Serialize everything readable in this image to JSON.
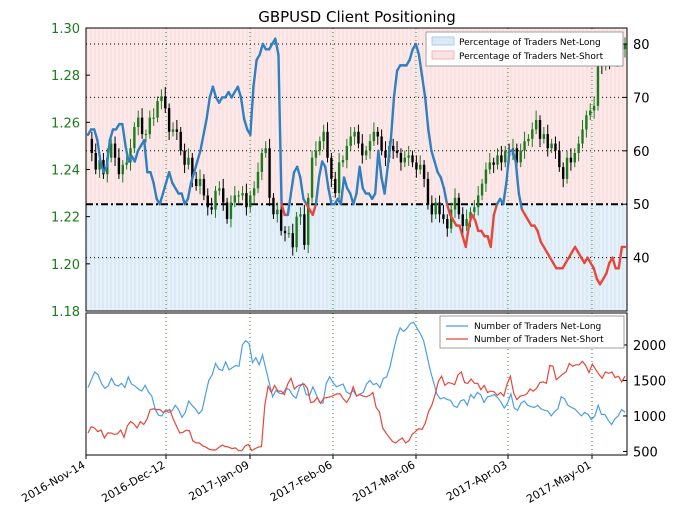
{
  "chart_data": [
    {
      "type": "line",
      "title": "GBPUSD Client Positioning",
      "y_left": {
        "ticks": [
          "1.18",
          "1.20",
          "1.22",
          "1.24",
          "1.26",
          "1.28",
          "1.30"
        ],
        "range": [
          1.18,
          1.3
        ]
      },
      "y_right": {
        "ticks": [
          "40",
          "50",
          "60",
          "70",
          "80"
        ],
        "range": [
          30,
          83
        ]
      },
      "x_ticks": [
        "2016-Nov-14",
        "2016-Dec-12",
        "2017-Jan-09",
        "2017-Feb-06",
        "2017-Mar-06",
        "2017-Apr-03",
        "2017-May-01"
      ],
      "grid": true,
      "legend_position": "top-right",
      "reference_line": 50,
      "legend": [
        "Percentage of Traders Net-Long",
        "Percentage of Traders Net-Short"
      ],
      "colors": {
        "candles": "#1e7a1e",
        "net_long_pct": "#2f7fc1",
        "net_short_pct": "#e8463a",
        "long_fill": "#dceaf6",
        "short_fill": "#fbe2e2",
        "axis_left": "#1e7a1e"
      },
      "series": [
        {
          "name": "Percentage of Traders Net-Long",
          "values": [
            63,
            64,
            64,
            62,
            58,
            56,
            57,
            62,
            64,
            64,
            65,
            65,
            61,
            58,
            59,
            58,
            60,
            61,
            62,
            56,
            56,
            54,
            51,
            50,
            52,
            54,
            56,
            54,
            53,
            52,
            52,
            50,
            51,
            54,
            56,
            58,
            60,
            63,
            66,
            70,
            72,
            70,
            69,
            70,
            70,
            71,
            70,
            71,
            72,
            70,
            66,
            64,
            63,
            72,
            77,
            78,
            80,
            79,
            79,
            80,
            81,
            78,
            50,
            48,
            48,
            52,
            56,
            57,
            55,
            51,
            50,
            49,
            48,
            50,
            55,
            58,
            57,
            53,
            50,
            50,
            51,
            50,
            55,
            53,
            52,
            50,
            52,
            57,
            53,
            52,
            52,
            51,
            52,
            60,
            55,
            52,
            57,
            62,
            70,
            75,
            76,
            76,
            76,
            77,
            79,
            80,
            78,
            74,
            70,
            64,
            60,
            58,
            56,
            55,
            53,
            50,
            48,
            47,
            46,
            46,
            44,
            42,
            46,
            48,
            47,
            45,
            45,
            44,
            44,
            42,
            48,
            50,
            51,
            50,
            54,
            60,
            60,
            58,
            52,
            49,
            48,
            47,
            46,
            46,
            45,
            43,
            42,
            41,
            40,
            39,
            38,
            38,
            38,
            39,
            40,
            41,
            42,
            41,
            40,
            39,
            40,
            39,
            38,
            36,
            35,
            36,
            37,
            39,
            40,
            38,
            38,
            42,
            42
          ]
        }
      ],
      "price_series": [
        1.253,
        1.247,
        1.24,
        1.244,
        1.238,
        1.245,
        1.251,
        1.245,
        1.238,
        1.242,
        1.243,
        1.249,
        1.258,
        1.262,
        1.255,
        1.255,
        1.262,
        1.262,
        1.269,
        1.271,
        1.266,
        1.256,
        1.257,
        1.256,
        1.248,
        1.242,
        1.245,
        1.236,
        1.233,
        1.236,
        1.229,
        1.224,
        1.223,
        1.231,
        1.232,
        1.226,
        1.219,
        1.226,
        1.229,
        1.229,
        1.23,
        1.224,
        1.229,
        1.232,
        1.239,
        1.247,
        1.249,
        1.228,
        1.221,
        1.223,
        1.214,
        1.213,
        1.213,
        1.207,
        1.22,
        1.221,
        1.208,
        1.228,
        1.245,
        1.248,
        1.252,
        1.256,
        1.245,
        1.236,
        1.23,
        1.243,
        1.244,
        1.25,
        1.254,
        1.256,
        1.251,
        1.246,
        1.248,
        1.252,
        1.256,
        1.254,
        1.248,
        1.245,
        1.25,
        1.248,
        1.247,
        1.243,
        1.245,
        1.246,
        1.243,
        1.24,
        1.242,
        1.236,
        1.225,
        1.221,
        1.226,
        1.221,
        1.219,
        1.215,
        1.223,
        1.228,
        1.221,
        1.216,
        1.219,
        1.222,
        1.224,
        1.229,
        1.234,
        1.24,
        1.243,
        1.242,
        1.246,
        1.243,
        1.248,
        1.246,
        1.249,
        1.243,
        1.248,
        1.252,
        1.253,
        1.257,
        1.261,
        1.253,
        1.255,
        1.249,
        1.251,
        1.248,
        1.241,
        1.236,
        1.245,
        1.243,
        1.247,
        1.251,
        1.257,
        1.263,
        1.265,
        1.267,
        1.286,
        1.284,
        1.288,
        1.286,
        1.287,
        1.289,
        1.291,
        1.293
      ]
    },
    {
      "type": "line",
      "legend_position": "top-right",
      "y_right": {
        "ticks": [
          "500",
          "1000",
          "1500",
          "2000"
        ],
        "range": [
          450,
          2450
        ]
      },
      "legend": [
        "Number of Traders Net-Long",
        "Number of Traders Net-Short"
      ],
      "series": [
        {
          "name": "Number of Traders Net-Long",
          "values": [
            1400,
            1510,
            1620,
            1580,
            1460,
            1390,
            1420,
            1530,
            1440,
            1420,
            1460,
            1400,
            1550,
            1450,
            1420,
            1380,
            1350,
            1430,
            1340,
            1280,
            1100,
            1010,
            1000,
            1080,
            1050,
            1070,
            1150,
            1090,
            980,
            1050,
            1210,
            1150,
            1100,
            1030,
            1080,
            1300,
            1500,
            1580,
            1740,
            1660,
            1640,
            1760,
            1650,
            1680,
            1710,
            1700,
            2000,
            2060,
            2020,
            1750,
            1820,
            1720,
            1860,
            1660,
            1470,
            1270,
            1360,
            1320,
            1310,
            1390,
            1370,
            1290,
            1250,
            1400,
            1460,
            1300,
            1290,
            1410,
            1300,
            1190,
            1180,
            1460,
            1550,
            1470,
            1410,
            1430,
            1450,
            1340,
            1310,
            1360,
            1280,
            1310,
            1330,
            1450,
            1500,
            1440,
            1460,
            1400,
            1530,
            1550,
            1700,
            1910,
            2110,
            2240,
            2190,
            2230,
            2300,
            2320,
            2240,
            2160,
            2060,
            1850,
            1640,
            1470,
            1300,
            1240,
            1260,
            1230,
            1220,
            1140,
            1120,
            1210,
            1230,
            1150,
            1300,
            1250,
            1330,
            1300,
            1190,
            1270,
            1280,
            1300,
            1260,
            1200,
            1110,
            1180,
            1310,
            1110,
            1080,
            1180,
            1210,
            1150,
            1130,
            1120,
            1150,
            1100,
            1080,
            1070,
            1000,
            1060,
            1100,
            1270,
            1240,
            1150,
            1120,
            1100,
            1050,
            1000,
            1050,
            1020,
            950,
            1000,
            1150,
            1020,
            1020,
            940,
            880,
            960,
            1000,
            1090,
            1050
          ]
        },
        {
          "name": "Number of Traders Net-Short",
          "values": [
            760,
            850,
            830,
            780,
            800,
            690,
            760,
            760,
            740,
            750,
            800,
            700,
            860,
            920,
            890,
            830,
            920,
            880,
            950,
            1090,
            1100,
            1090,
            1090,
            1050,
            1070,
            1090,
            960,
            860,
            760,
            770,
            800,
            790,
            650,
            620,
            620,
            580,
            560,
            530,
            520,
            520,
            560,
            590,
            570,
            560,
            540,
            550,
            510,
            510,
            580,
            600,
            510,
            540,
            560,
            570,
            1150,
            1420,
            1330,
            1430,
            1350,
            1350,
            1300,
            1450,
            1530,
            1380,
            1420,
            1440,
            1450,
            1390,
            1190,
            1200,
            1260,
            1180,
            1250,
            1260,
            1270,
            1290,
            1310,
            1310,
            1240,
            1190,
            1270,
            1410,
            1280,
            1300,
            1280,
            1270,
            1290,
            1330,
            1120,
            1060,
            830,
            760,
            700,
            640,
            620,
            660,
            690,
            620,
            650,
            740,
            780,
            820,
            810,
            900,
            1060,
            1150,
            1300,
            1490,
            1560,
            1430,
            1470,
            1460,
            1440,
            1580,
            1620,
            1470,
            1460,
            1520,
            1460,
            1460,
            1370,
            1430,
            1330,
            1350,
            1340,
            1290,
            1330,
            1280,
            1450,
            1560,
            1320,
            1230,
            1280,
            1290,
            1310,
            1380,
            1350,
            1390,
            1470,
            1480,
            1460,
            1710,
            1700,
            1510,
            1550,
            1590,
            1620,
            1740,
            1700,
            1720,
            1720,
            1770,
            1710,
            1610,
            1730,
            1660,
            1590,
            1530,
            1620,
            1600,
            1620,
            1540,
            1560,
            1480,
            1560
          ]
        }
      ]
    }
  ]
}
